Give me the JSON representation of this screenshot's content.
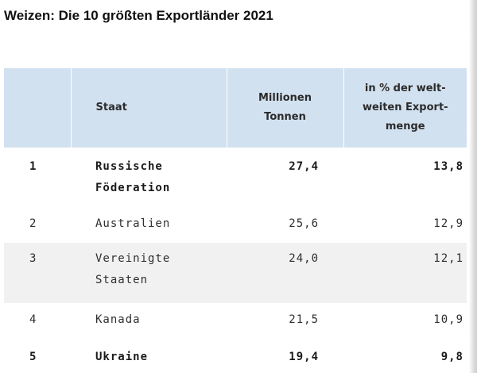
{
  "title": "Weizen: Die 10 größten Exportländer 2021",
  "table": {
    "headers": {
      "state": "Staat",
      "tonnes_line1": "Millionen",
      "tonnes_line2": "Tonnen",
      "share_line1": "in % der welt-",
      "share_line2": "weiten Export-",
      "share_line3": "menge"
    },
    "rows": [
      {
        "rank": "1",
        "state_line1": "Russische",
        "state_line2": "Föderation",
        "tonnes": "27,4",
        "share": "13,8",
        "bold": true
      },
      {
        "rank": "2",
        "state_line1": "Australien",
        "state_line2": "",
        "tonnes": "25,6",
        "share": "12,9",
        "bold": false
      },
      {
        "rank": "3",
        "state_line1": "Vereinigte",
        "state_line2": "Staaten",
        "tonnes": "24,0",
        "share": "12,1",
        "bold": false
      },
      {
        "rank": "4",
        "state_line1": "Kanada",
        "state_line2": "",
        "tonnes": "21,5",
        "share": "10,9",
        "bold": false
      },
      {
        "rank": "5",
        "state_line1": "Ukraine",
        "state_line2": "",
        "tonnes": "19,4",
        "share": "9,8",
        "bold": true
      }
    ]
  }
}
